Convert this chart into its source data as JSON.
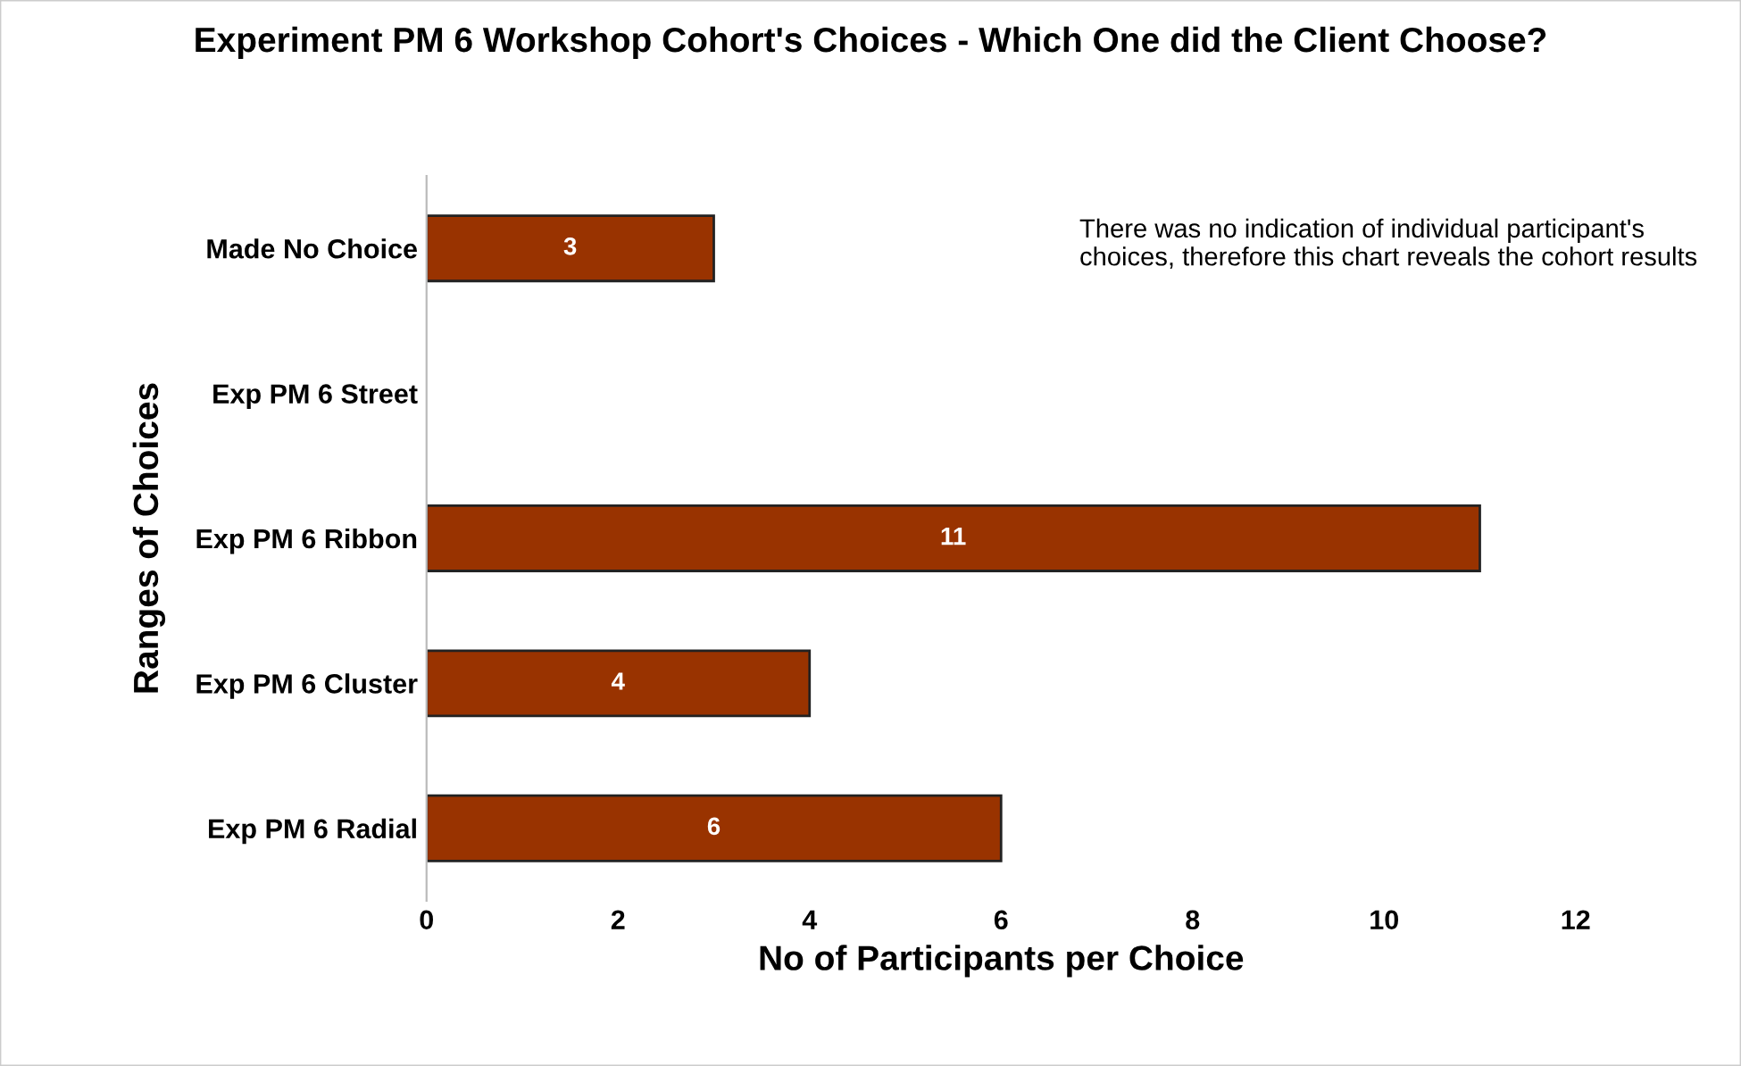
{
  "chart_data": {
    "type": "bar",
    "orientation": "horizontal",
    "title": "Experiment PM 6 Workshop Cohort's Choices - Which One did the Client Choose?",
    "xlabel": "No of Participants per Choice",
    "ylabel": "Ranges of Choices",
    "categories": [
      "Made No Choice",
      "Exp PM 6 Street",
      "Exp PM 6 Ribbon",
      "Exp PM 6 Cluster",
      "Exp PM 6 Radial"
    ],
    "values": [
      3,
      null,
      11,
      4,
      6
    ],
    "color": "#993300",
    "xlim": [
      0,
      12
    ],
    "xticks": [
      0,
      2,
      4,
      6,
      8,
      10,
      12
    ],
    "grid": false,
    "data_labels": true,
    "annotations": [
      "There was no indication of individual participant's choices, therefore this chart reveals the cohort results"
    ]
  }
}
